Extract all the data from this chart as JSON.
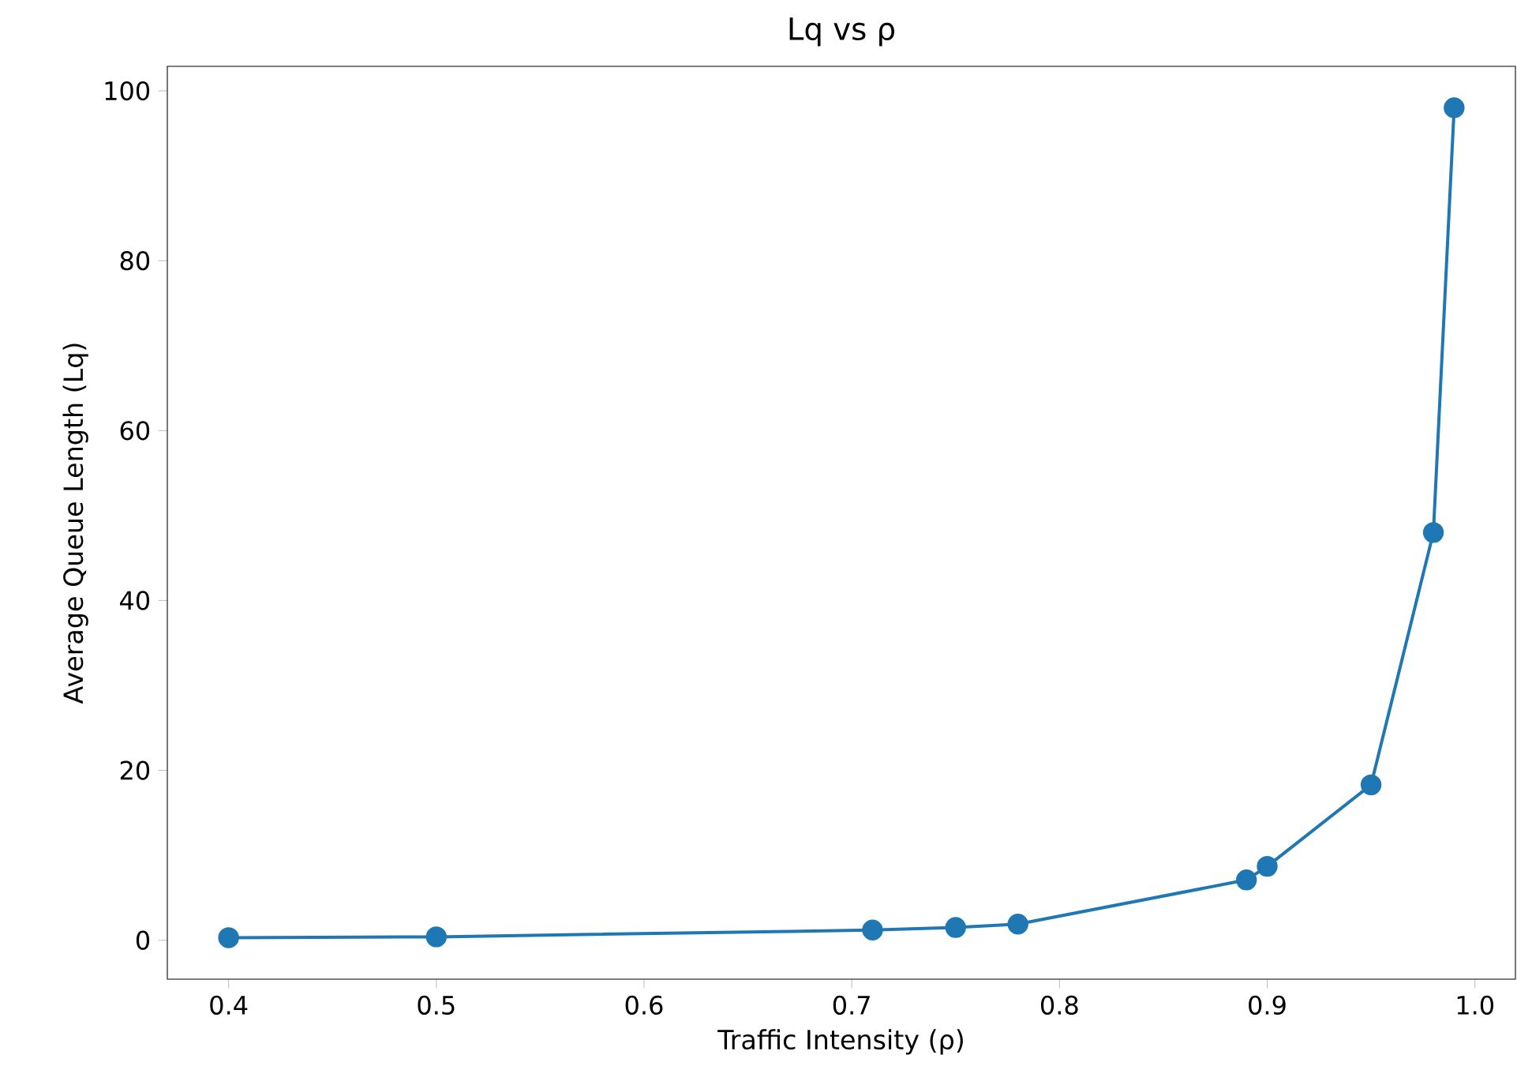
{
  "chart_data": {
    "type": "line",
    "title": "Lq vs ρ",
    "xlabel": "Traffic Intensity (ρ)",
    "ylabel": "Average Queue Length (Lq)",
    "x": [
      0.4,
      0.5,
      0.71,
      0.75,
      0.78,
      0.89,
      0.9,
      0.95,
      0.98,
      0.99
    ],
    "series": [
      {
        "color": "#1f77b4",
        "values": [
          0.3,
          0.4,
          1.2,
          1.5,
          1.9,
          7.1,
          8.7,
          18.3,
          48,
          98
        ]
      }
    ],
    "xlim": [
      0.3705,
      1.0195
    ],
    "ylim": [
      -4.585,
      102.885
    ],
    "xticks": [
      {
        "value": 0.4,
        "label": "0.4"
      },
      {
        "value": 0.5,
        "label": "0.5"
      },
      {
        "value": 0.6,
        "label": "0.6"
      },
      {
        "value": 0.7,
        "label": "0.7"
      },
      {
        "value": 0.8,
        "label": "0.8"
      },
      {
        "value": 0.9,
        "label": "0.9"
      },
      {
        "value": 1.0,
        "label": "1.0"
      }
    ],
    "yticks": [
      0,
      20,
      40,
      60,
      80,
      100
    ],
    "marker": "circle",
    "line_style": "solid"
  }
}
